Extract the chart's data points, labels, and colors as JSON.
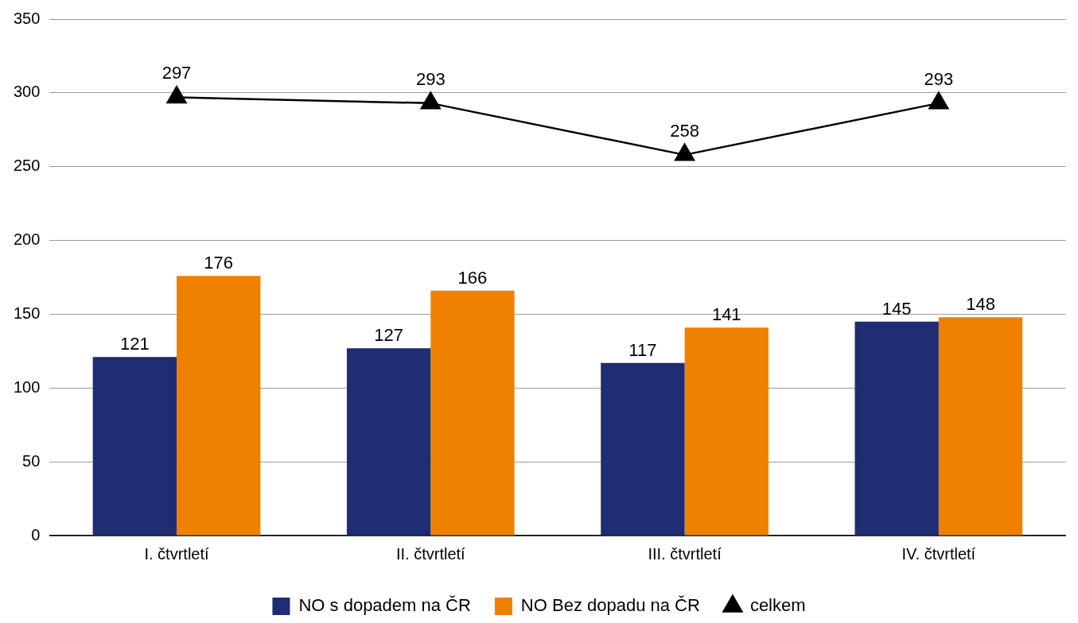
{
  "chart_data": {
    "type": "bar",
    "categories": [
      "I. čtvrtletí",
      "II. čtvrtletí",
      "III. čtvrtletí",
      "IV. čtvrtletí"
    ],
    "series": [
      {
        "name": "NO s dopadem na ČR",
        "color": "#1f2d73",
        "values": [
          121,
          127,
          117,
          145
        ]
      },
      {
        "name": "NO Bez dopadu na ČR",
        "color": "#f08000",
        "values": [
          176,
          166,
          141,
          148
        ]
      },
      {
        "name": "celkem",
        "type": "line",
        "color": "#000000",
        "values": [
          297,
          293,
          258,
          293
        ]
      }
    ],
    "ylim": [
      0,
      350
    ],
    "yticks": [
      0,
      50,
      100,
      150,
      200,
      250,
      300,
      350
    ],
    "grid": "y",
    "legend": "bottom",
    "marker": "triangle",
    "line_style": "solid",
    "data_labels": true
  }
}
